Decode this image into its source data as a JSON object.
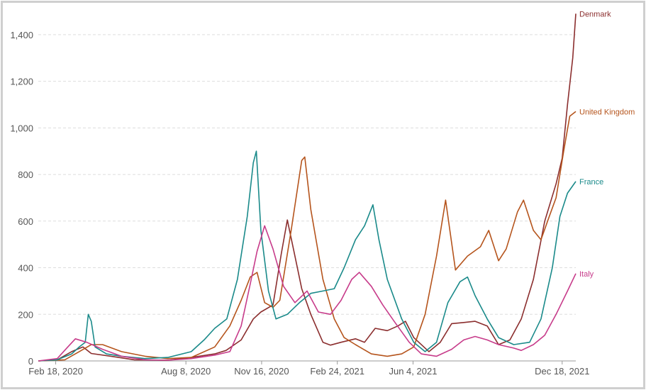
{
  "chart_data": {
    "type": "line",
    "ylim": [
      0,
      1500
    ],
    "y_ticks": [
      {
        "value": 0,
        "label": "0"
      },
      {
        "value": 200,
        "label": "200"
      },
      {
        "value": 400,
        "label": "400"
      },
      {
        "value": 600,
        "label": "600"
      },
      {
        "value": 800,
        "label": "800"
      },
      {
        "value": 1000,
        "label": "1,000"
      },
      {
        "value": 1200,
        "label": "1,200"
      },
      {
        "value": 1400,
        "label": "1,400"
      }
    ],
    "x_range": [
      "2020-01-26",
      "2022-01-05"
    ],
    "x_ticks": [
      {
        "date": "2020-02-18",
        "label": "Feb 18, 2020"
      },
      {
        "date": "2020-08-08",
        "label": "Aug 8, 2020"
      },
      {
        "date": "2020-11-16",
        "label": "Nov 16, 2020"
      },
      {
        "date": "2021-02-24",
        "label": "Feb 24, 2021"
      },
      {
        "date": "2021-06-04",
        "label": "Jun 4, 2021"
      },
      {
        "date": "2021-12-18",
        "label": "Dec 18, 2021"
      }
    ],
    "grid": "horizontal dashed",
    "legend": "labels at line ends",
    "series": [
      {
        "name": "Denmark",
        "color": "#8b2e2e",
        "points": [
          [
            "2020-01-26",
            0
          ],
          [
            "2020-02-20",
            5
          ],
          [
            "2020-03-10",
            40
          ],
          [
            "2020-03-25",
            60
          ],
          [
            "2020-04-05",
            32
          ],
          [
            "2020-05-01",
            20
          ],
          [
            "2020-06-01",
            5
          ],
          [
            "2020-07-15",
            3
          ],
          [
            "2020-08-15",
            15
          ],
          [
            "2020-09-15",
            30
          ],
          [
            "2020-09-30",
            45
          ],
          [
            "2020-10-20",
            90
          ],
          [
            "2020-11-05",
            180
          ],
          [
            "2020-11-15",
            210
          ],
          [
            "2020-12-01",
            240
          ],
          [
            "2020-12-12",
            460
          ],
          [
            "2020-12-20",
            605
          ],
          [
            "2020-12-30",
            450
          ],
          [
            "2021-01-08",
            310
          ],
          [
            "2021-01-20",
            200
          ],
          [
            "2021-02-05",
            80
          ],
          [
            "2021-02-15",
            68
          ],
          [
            "2021-03-01",
            80
          ],
          [
            "2021-03-20",
            95
          ],
          [
            "2021-04-01",
            80
          ],
          [
            "2021-04-15",
            140
          ],
          [
            "2021-05-01",
            130
          ],
          [
            "2021-05-15",
            150
          ],
          [
            "2021-05-25",
            170
          ],
          [
            "2021-06-05",
            100
          ],
          [
            "2021-06-25",
            40
          ],
          [
            "2021-07-10",
            80
          ],
          [
            "2021-07-25",
            160
          ],
          [
            "2021-08-10",
            165
          ],
          [
            "2021-08-25",
            170
          ],
          [
            "2021-09-10",
            150
          ],
          [
            "2021-09-25",
            70
          ],
          [
            "2021-10-10",
            90
          ],
          [
            "2021-10-25",
            180
          ],
          [
            "2021-11-10",
            350
          ],
          [
            "2021-11-25",
            600
          ],
          [
            "2021-12-10",
            760
          ],
          [
            "2021-12-18",
            870
          ],
          [
            "2021-12-25",
            1100
          ],
          [
            "2022-01-01",
            1300
          ],
          [
            "2022-01-05",
            1490
          ]
        ]
      },
      {
        "name": "United Kingdom",
        "color": "#b5541c",
        "points": [
          [
            "2020-01-26",
            0
          ],
          [
            "2020-03-01",
            5
          ],
          [
            "2020-03-20",
            40
          ],
          [
            "2020-04-05",
            70
          ],
          [
            "2020-04-20",
            70
          ],
          [
            "2020-05-15",
            40
          ],
          [
            "2020-06-15",
            20
          ],
          [
            "2020-07-15",
            10
          ],
          [
            "2020-08-15",
            15
          ],
          [
            "2020-09-15",
            60
          ],
          [
            "2020-10-05",
            150
          ],
          [
            "2020-10-20",
            260
          ],
          [
            "2020-11-01",
            360
          ],
          [
            "2020-11-10",
            380
          ],
          [
            "2020-11-20",
            250
          ],
          [
            "2020-12-01",
            230
          ],
          [
            "2020-12-10",
            260
          ],
          [
            "2020-12-25",
            560
          ],
          [
            "2021-01-08",
            860
          ],
          [
            "2021-01-12",
            875
          ],
          [
            "2021-01-20",
            650
          ],
          [
            "2021-02-05",
            350
          ],
          [
            "2021-02-20",
            180
          ],
          [
            "2021-03-05",
            100
          ],
          [
            "2021-03-20",
            70
          ],
          [
            "2021-04-10",
            30
          ],
          [
            "2021-05-01",
            20
          ],
          [
            "2021-05-20",
            30
          ],
          [
            "2021-06-05",
            60
          ],
          [
            "2021-06-20",
            200
          ],
          [
            "2021-07-05",
            450
          ],
          [
            "2021-07-17",
            690
          ],
          [
            "2021-07-30",
            390
          ],
          [
            "2021-08-15",
            450
          ],
          [
            "2021-09-01",
            490
          ],
          [
            "2021-09-12",
            560
          ],
          [
            "2021-09-25",
            430
          ],
          [
            "2021-10-05",
            480
          ],
          [
            "2021-10-20",
            640
          ],
          [
            "2021-10-28",
            690
          ],
          [
            "2021-11-10",
            560
          ],
          [
            "2021-11-20",
            520
          ],
          [
            "2021-12-01",
            620
          ],
          [
            "2021-12-10",
            700
          ],
          [
            "2021-12-20",
            900
          ],
          [
            "2021-12-28",
            1050
          ],
          [
            "2022-01-05",
            1070
          ]
        ]
      },
      {
        "name": "France",
        "color": "#1a8a8a",
        "points": [
          [
            "2020-01-26",
            0
          ],
          [
            "2020-02-20",
            5
          ],
          [
            "2020-03-10",
            30
          ],
          [
            "2020-03-20",
            60
          ],
          [
            "2020-03-28",
            80
          ],
          [
            "2020-04-01",
            200
          ],
          [
            "2020-04-05",
            170
          ],
          [
            "2020-04-10",
            60
          ],
          [
            "2020-04-25",
            30
          ],
          [
            "2020-05-15",
            20
          ],
          [
            "2020-06-15",
            10
          ],
          [
            "2020-07-15",
            15
          ],
          [
            "2020-08-15",
            40
          ],
          [
            "2020-09-01",
            90
          ],
          [
            "2020-09-15",
            140
          ],
          [
            "2020-10-01",
            180
          ],
          [
            "2020-10-15",
            350
          ],
          [
            "2020-10-28",
            620
          ],
          [
            "2020-11-05",
            850
          ],
          [
            "2020-11-09",
            900
          ],
          [
            "2020-11-15",
            560
          ],
          [
            "2020-11-25",
            300
          ],
          [
            "2020-12-05",
            180
          ],
          [
            "2020-12-20",
            200
          ],
          [
            "2021-01-05",
            250
          ],
          [
            "2021-01-20",
            290
          ],
          [
            "2021-02-05",
            300
          ],
          [
            "2021-02-20",
            310
          ],
          [
            "2021-03-05",
            400
          ],
          [
            "2021-03-20",
            520
          ],
          [
            "2021-04-01",
            580
          ],
          [
            "2021-04-12",
            670
          ],
          [
            "2021-04-20",
            520
          ],
          [
            "2021-05-01",
            350
          ],
          [
            "2021-05-20",
            180
          ],
          [
            "2021-06-05",
            80
          ],
          [
            "2021-06-20",
            40
          ],
          [
            "2021-07-05",
            80
          ],
          [
            "2021-07-20",
            250
          ],
          [
            "2021-08-05",
            340
          ],
          [
            "2021-08-15",
            360
          ],
          [
            "2021-08-25",
            280
          ],
          [
            "2021-09-10",
            180
          ],
          [
            "2021-09-25",
            100
          ],
          [
            "2021-10-15",
            70
          ],
          [
            "2021-11-05",
            80
          ],
          [
            "2021-11-20",
            180
          ],
          [
            "2021-12-05",
            400
          ],
          [
            "2021-12-15",
            620
          ],
          [
            "2021-12-25",
            720
          ],
          [
            "2022-01-05",
            770
          ]
        ]
      },
      {
        "name": "Italy",
        "color": "#c73b8a",
        "points": [
          [
            "2020-01-26",
            0
          ],
          [
            "2020-02-20",
            10
          ],
          [
            "2020-03-05",
            60
          ],
          [
            "2020-03-15",
            95
          ],
          [
            "2020-03-30",
            80
          ],
          [
            "2020-04-20",
            50
          ],
          [
            "2020-05-15",
            20
          ],
          [
            "2020-06-15",
            5
          ],
          [
            "2020-07-15",
            3
          ],
          [
            "2020-08-15",
            10
          ],
          [
            "2020-09-15",
            25
          ],
          [
            "2020-10-05",
            40
          ],
          [
            "2020-10-20",
            150
          ],
          [
            "2020-11-01",
            330
          ],
          [
            "2020-11-10",
            470
          ],
          [
            "2020-11-20",
            580
          ],
          [
            "2020-12-01",
            480
          ],
          [
            "2020-12-15",
            320
          ],
          [
            "2020-12-30",
            250
          ],
          [
            "2021-01-15",
            300
          ],
          [
            "2021-01-30",
            210
          ],
          [
            "2021-02-15",
            200
          ],
          [
            "2021-03-01",
            260
          ],
          [
            "2021-03-15",
            350
          ],
          [
            "2021-03-25",
            380
          ],
          [
            "2021-04-10",
            320
          ],
          [
            "2021-04-25",
            240
          ],
          [
            "2021-05-10",
            170
          ],
          [
            "2021-05-30",
            80
          ],
          [
            "2021-06-15",
            30
          ],
          [
            "2021-07-05",
            20
          ],
          [
            "2021-07-25",
            50
          ],
          [
            "2021-08-10",
            90
          ],
          [
            "2021-08-25",
            105
          ],
          [
            "2021-09-10",
            90
          ],
          [
            "2021-09-25",
            70
          ],
          [
            "2021-10-15",
            55
          ],
          [
            "2021-10-25",
            45
          ],
          [
            "2021-11-10",
            70
          ],
          [
            "2021-11-25",
            110
          ],
          [
            "2021-12-10",
            200
          ],
          [
            "2021-12-25",
            300
          ],
          [
            "2022-01-05",
            375
          ]
        ]
      }
    ]
  }
}
